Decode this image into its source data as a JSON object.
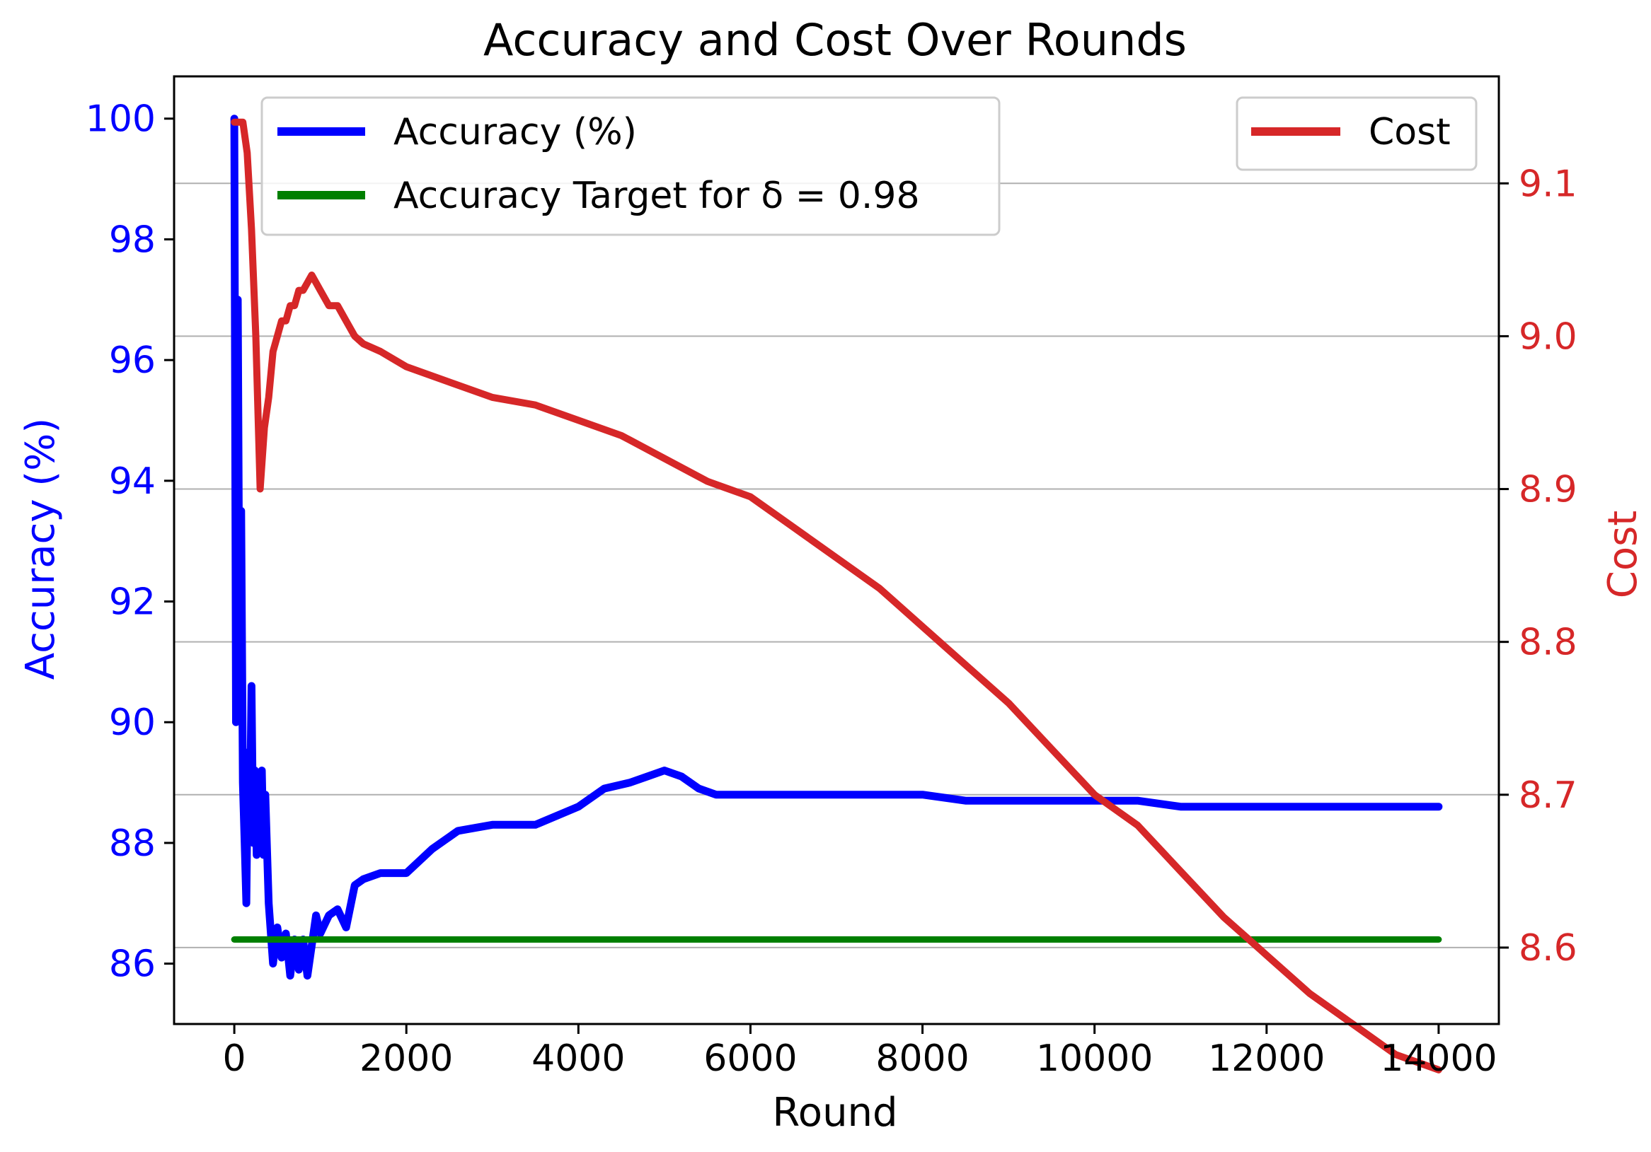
{
  "chart_data": {
    "type": "line",
    "title": "Accuracy and Cost Over Rounds",
    "xlabel": "Round",
    "ylabel_left": "Accuracy (%)",
    "ylabel_right": "Cost",
    "xlim": [
      -700,
      14700
    ],
    "ylim_left": [
      85,
      100.7
    ],
    "ylim_right": [
      8.55,
      9.17
    ],
    "xticks": [
      0,
      2000,
      4000,
      6000,
      8000,
      10000,
      12000,
      14000
    ],
    "xtick_labels": [
      "0",
      "2000",
      "4000",
      "6000",
      "8000",
      "10000",
      "12000",
      "14000"
    ],
    "yticks_left": [
      86,
      88,
      90,
      92,
      94,
      96,
      98,
      100
    ],
    "ytick_labels_left": [
      "86",
      "88",
      "90",
      "92",
      "94",
      "96",
      "98",
      "100"
    ],
    "yticks_right": [
      8.6,
      8.7,
      8.8,
      8.9,
      9.0,
      9.1
    ],
    "ytick_labels_right": [
      "8.6",
      "8.7",
      "8.8",
      "8.9",
      "9.0",
      "9.1"
    ],
    "grid": "horizontal at right-axis ticks",
    "legend_left_placement": "upper-left",
    "legend_right_placement": "upper-right",
    "series": [
      {
        "name": "Accuracy (%)",
        "axis": "left",
        "color": "#0000ff",
        "x": [
          0,
          20,
          40,
          60,
          80,
          100,
          120,
          140,
          160,
          180,
          200,
          220,
          240,
          260,
          280,
          300,
          320,
          340,
          360,
          380,
          400,
          450,
          500,
          550,
          600,
          650,
          700,
          750,
          800,
          850,
          900,
          950,
          1000,
          1100,
          1200,
          1300,
          1400,
          1500,
          1700,
          2000,
          2300,
          2600,
          3000,
          3500,
          4000,
          4300,
          4600,
          4800,
          5000,
          5200,
          5400,
          5600,
          5800,
          6200,
          6600,
          7000,
          7500,
          8000,
          8500,
          9000,
          9500,
          10000,
          10500,
          11000,
          11500,
          12000,
          12500,
          13000,
          13500,
          14000
        ],
        "y": [
          100.0,
          90.0,
          97.0,
          91.0,
          93.5,
          89.0,
          88.0,
          87.0,
          89.5,
          88.2,
          90.6,
          88.0,
          89.2,
          87.8,
          89.0,
          88.3,
          89.2,
          87.8,
          88.8,
          87.9,
          87.0,
          86.0,
          86.6,
          86.1,
          86.5,
          85.8,
          86.4,
          85.9,
          86.4,
          85.8,
          86.3,
          86.8,
          86.5,
          86.8,
          86.9,
          86.6,
          87.3,
          87.4,
          87.5,
          87.5,
          87.9,
          88.2,
          88.3,
          88.3,
          88.6,
          88.9,
          89.0,
          89.1,
          89.2,
          89.1,
          88.9,
          88.8,
          88.8,
          88.8,
          88.8,
          88.8,
          88.8,
          88.8,
          88.7,
          88.7,
          88.7,
          88.7,
          88.7,
          88.6,
          88.6,
          88.6,
          88.6,
          88.6,
          88.6,
          88.6
        ]
      },
      {
        "name": "Accuracy Target for δ = 0.98",
        "axis": "left",
        "color": "#007f00",
        "x": [
          0,
          14000
        ],
        "y": [
          86.4,
          86.4
        ]
      },
      {
        "name": "Cost",
        "axis": "right",
        "color": "#d62728",
        "x": [
          0,
          50,
          100,
          150,
          200,
          250,
          300,
          350,
          400,
          450,
          500,
          550,
          600,
          650,
          700,
          750,
          800,
          850,
          900,
          950,
          1000,
          1100,
          1200,
          1300,
          1400,
          1500,
          1700,
          2000,
          2500,
          3000,
          3500,
          4000,
          4500,
          5000,
          5500,
          6000,
          6500,
          7000,
          7500,
          8000,
          8500,
          9000,
          9500,
          10000,
          10500,
          11000,
          11500,
          12000,
          12500,
          13000,
          13500,
          14000
        ],
        "y": [
          9.14,
          9.14,
          9.14,
          9.12,
          9.07,
          9.0,
          8.9,
          8.94,
          8.96,
          8.99,
          9.0,
          9.01,
          9.01,
          9.02,
          9.02,
          9.03,
          9.03,
          9.035,
          9.04,
          9.035,
          9.03,
          9.02,
          9.02,
          9.01,
          9.0,
          8.995,
          8.99,
          8.98,
          8.97,
          8.96,
          8.955,
          8.945,
          8.935,
          8.92,
          8.905,
          8.895,
          8.875,
          8.855,
          8.835,
          8.81,
          8.785,
          8.76,
          8.73,
          8.7,
          8.68,
          8.65,
          8.62,
          8.595,
          8.57,
          8.55,
          8.53,
          8.52
        ]
      }
    ]
  }
}
